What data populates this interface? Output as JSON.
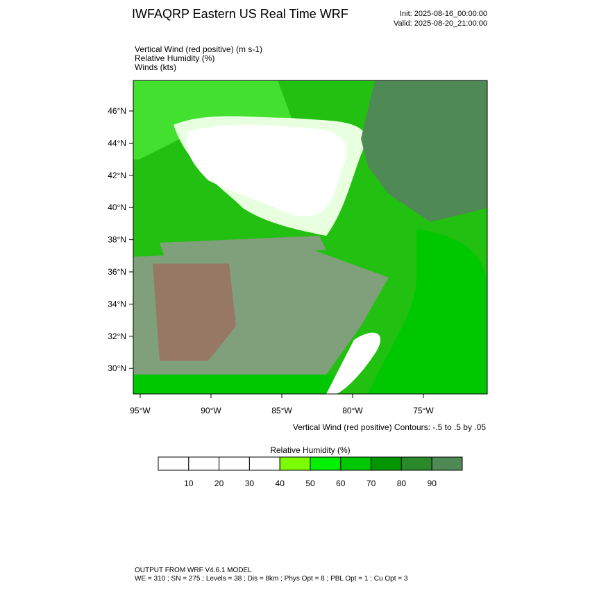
{
  "header": {
    "title": "IWFAQRP Eastern US Real Time WRF",
    "init": "Init: 2025-08-16_00:00:00",
    "valid": "Valid: 2025-08-20_21:00:00"
  },
  "fields": [
    "Vertical Wind (red positive)   (m s-1)",
    "Relative Humidity   (%)",
    "Winds   (kts)"
  ],
  "map": {
    "lat_labels": [
      "46°N",
      "44°N",
      "42°N",
      "40°N",
      "38°N",
      "36°N",
      "34°N",
      "32°N",
      "30°N"
    ],
    "lon_labels": [
      "95°W",
      "90°W",
      "85°W",
      "80°W",
      "75°W"
    ],
    "contour_note": "Vertical Wind (red positive) Contours: -.5 to .5 by .05"
  },
  "colorbar": {
    "title": "Relative Humidity  (%)",
    "colors": [
      "#ffffff",
      "#ffffff",
      "#ffffff",
      "#ffffff",
      "#7cfc00",
      "#00f000",
      "#00c800",
      "#009600",
      "#2a8a2a",
      "#4f8a56"
    ],
    "labels": [
      "10",
      "20",
      "30",
      "40",
      "50",
      "60",
      "70",
      "80",
      "90"
    ]
  },
  "footer": [
    "OUTPUT FROM WRF V4.6.1 MODEL",
    "WE = 310 ; SN = 275 ; Levels = 38 ; Dis = 8km ; Phys Opt = 8 ; PBL Opt = 1 ; Cu Opt = 3"
  ]
}
